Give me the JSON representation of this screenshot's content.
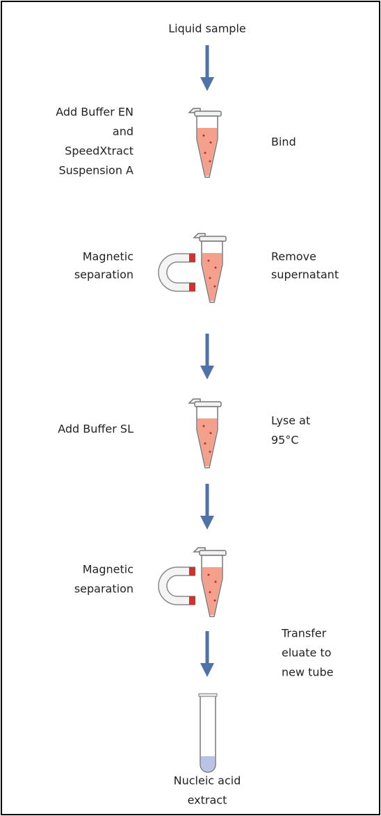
{
  "title": "Liquid sample",
  "steps": [
    {
      "left": [
        "Add Buffer EN",
        "and",
        "SpeedXtract",
        "Suspension A"
      ],
      "right": [
        "Bind"
      ]
    },
    {
      "left": [
        "Magnetic",
        "separation"
      ],
      "right": [
        "Remove",
        "supernatant"
      ]
    },
    {
      "left": [
        "Add Buffer SL"
      ],
      "right": [
        "Lyse at",
        "95°C"
      ]
    },
    {
      "left": [
        "Magnetic",
        "separation"
      ]
    }
  ],
  "transfer": [
    "Transfer",
    "eluate to",
    "new tube"
  ],
  "result": [
    "Nucleic acid",
    "extract"
  ]
}
